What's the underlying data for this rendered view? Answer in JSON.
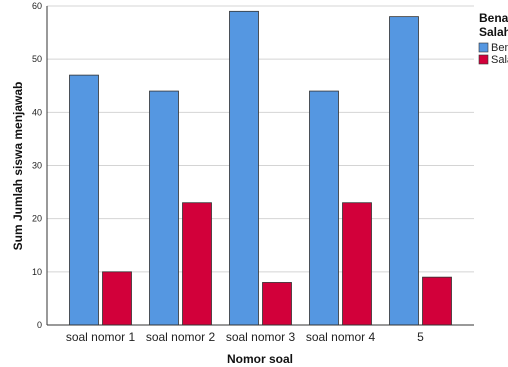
{
  "chart_data": {
    "type": "bar",
    "categories": [
      "soal nomor 1",
      "soal nomor 2",
      "soal nomor 3",
      "soal nomor 4",
      "5"
    ],
    "series": [
      {
        "name": "Benar",
        "color": "#5597e1",
        "values": [
          47,
          44,
          59,
          44,
          58
        ]
      },
      {
        "name": "Salah",
        "color": "#d2003a",
        "values": [
          10,
          23,
          8,
          23,
          9
        ]
      }
    ],
    "xlabel": "Nomor soal",
    "ylabel": "Sum Jumlah siswa menjawab",
    "ylim": [
      0,
      60
    ],
    "yticks": [
      0,
      10,
      20,
      30,
      40,
      50,
      60
    ],
    "grid": true,
    "legend": {
      "title_line1": "Benar",
      "title_line2": "Salah",
      "placement": "top-right"
    }
  }
}
